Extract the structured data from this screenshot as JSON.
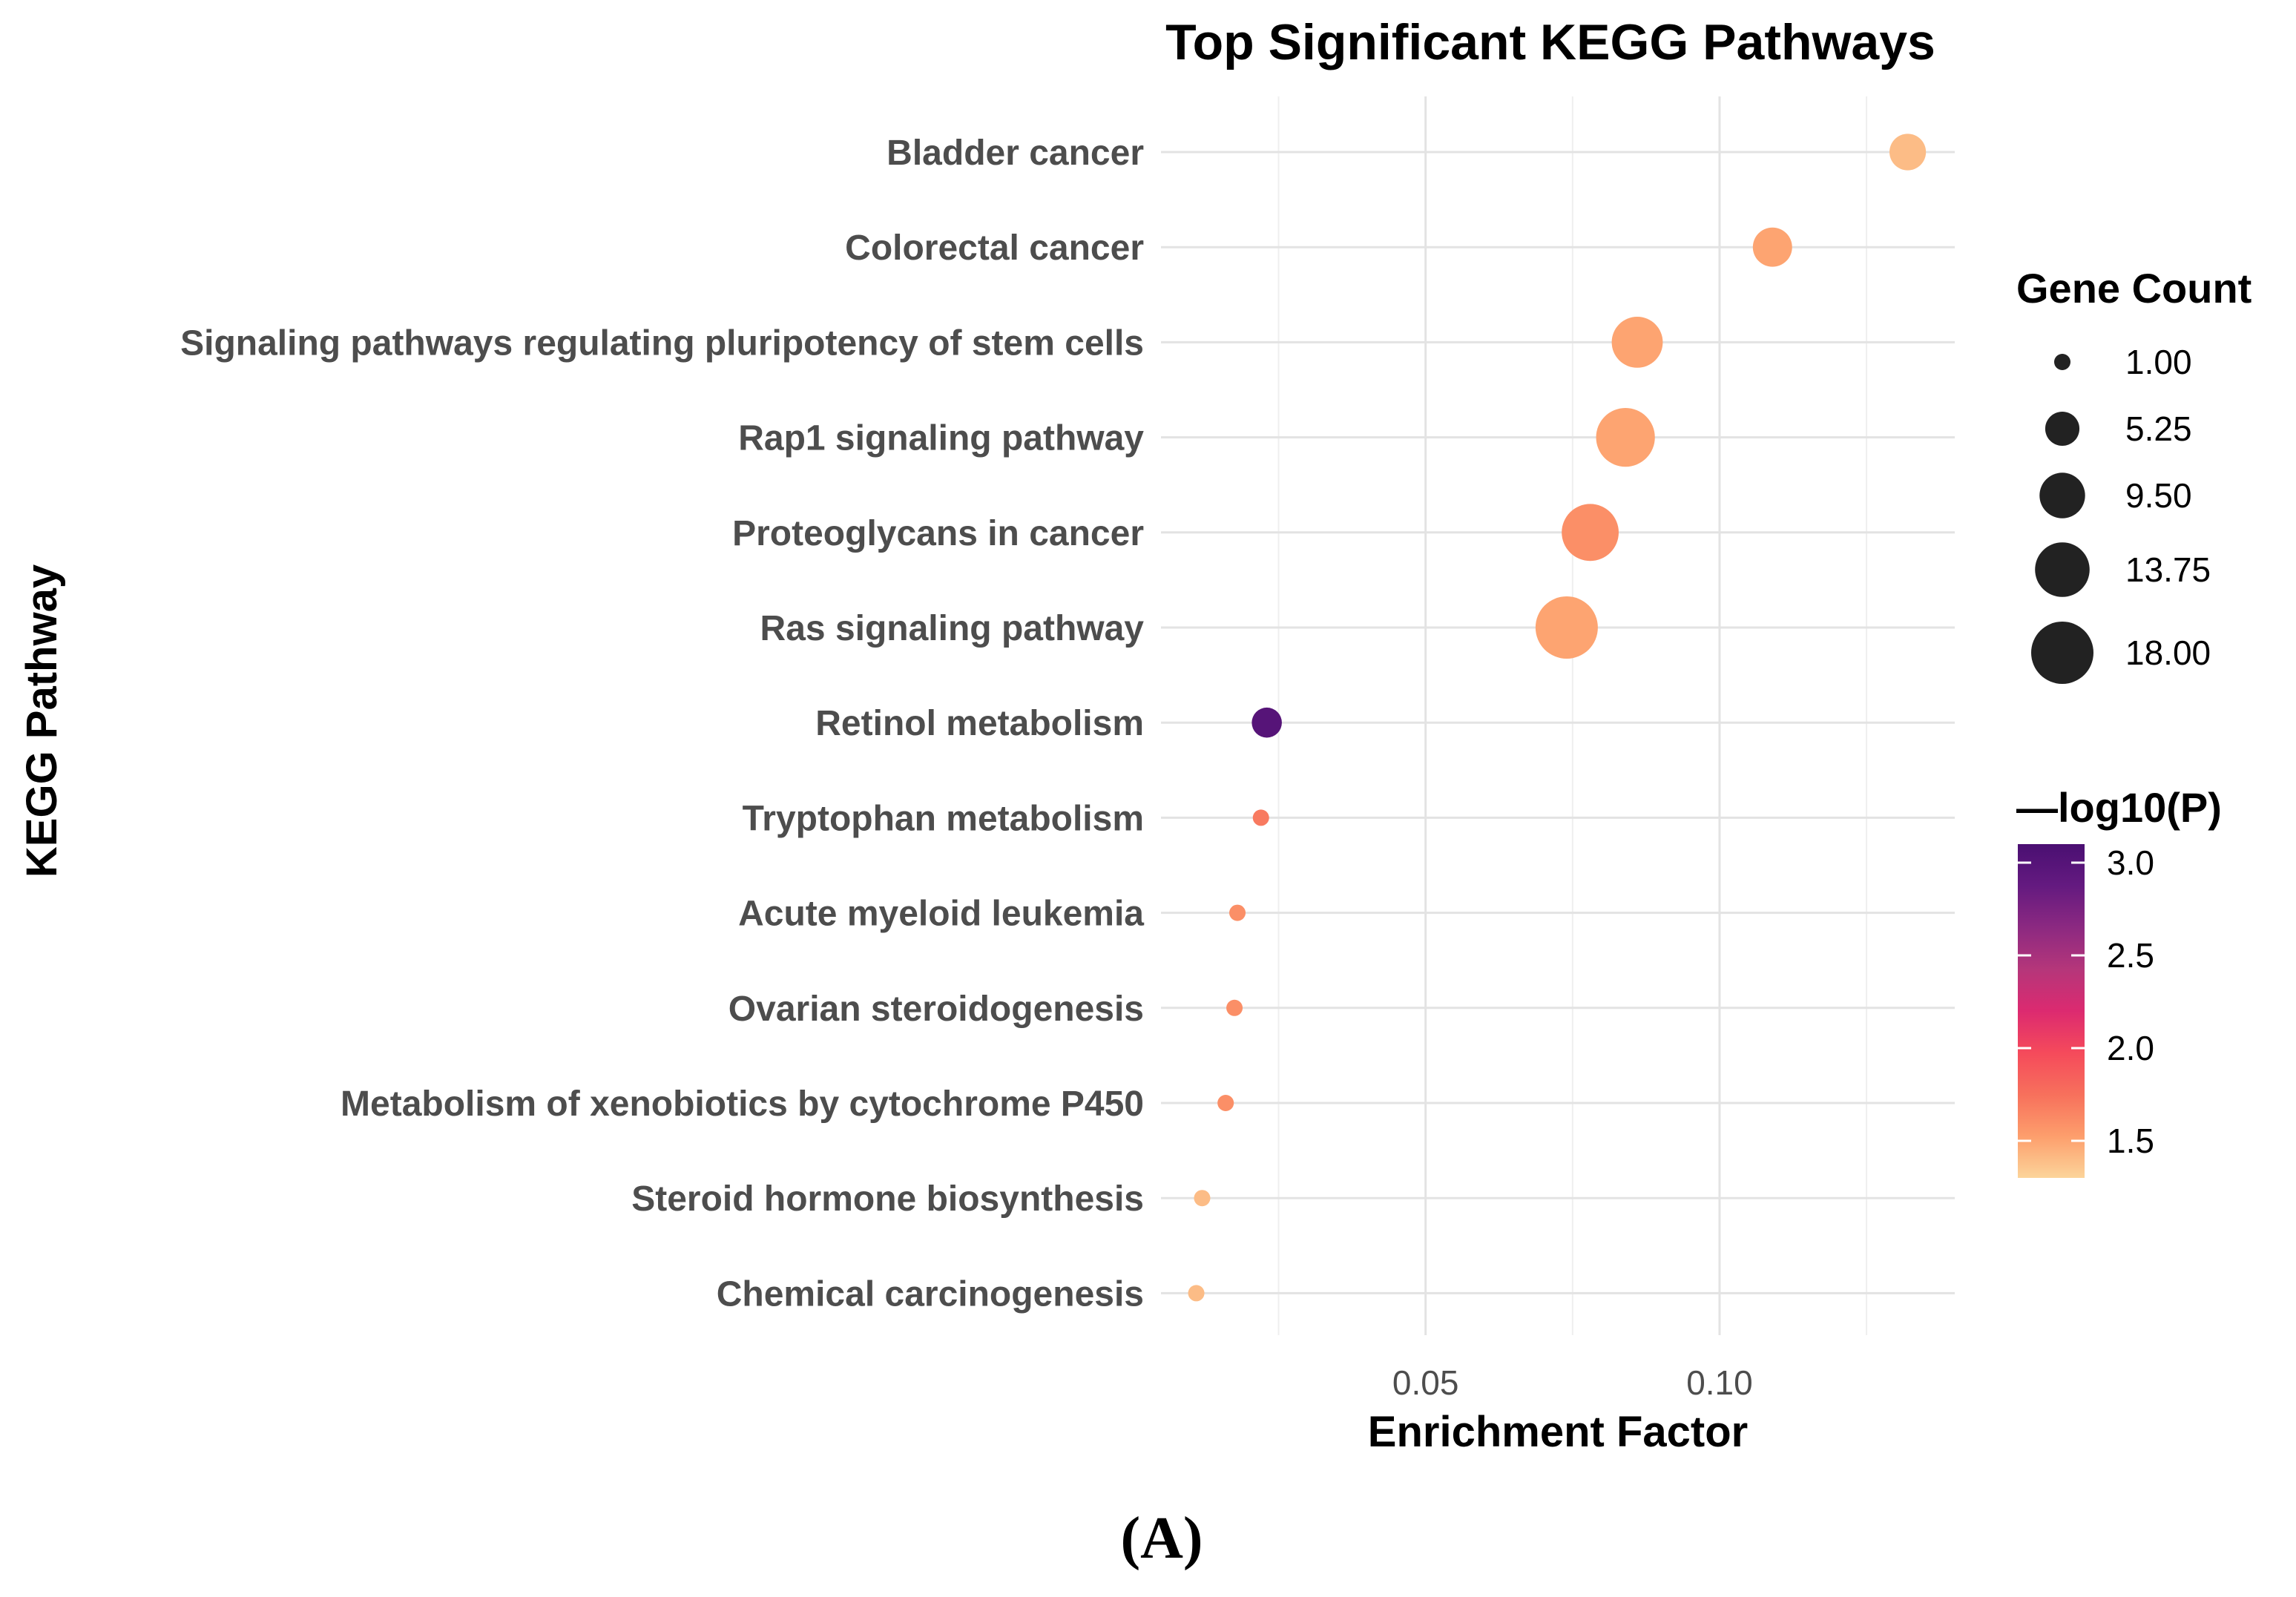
{
  "chart_data": {
    "type": "scatter",
    "title": "Top Significant KEGG Pathways",
    "xlabel": "Enrichment Factor",
    "ylabel": "KEGG Pathway",
    "xlim": [
      0.005,
      0.14
    ],
    "xticks": [
      0.05,
      0.1
    ],
    "xtick_labels": [
      "0.05",
      "0.10"
    ],
    "grid": true,
    "panel_label": "(A)",
    "points": [
      {
        "pathway": "Bladder cancer",
        "enrichment_factor": 0.132,
        "gene_count": 6,
        "neg_log10_p": 1.4
      },
      {
        "pathway": "Colorectal cancer",
        "enrichment_factor": 0.109,
        "gene_count": 7,
        "neg_log10_p": 1.5
      },
      {
        "pathway": "Signaling pathways regulating pluripotency of stem cells",
        "enrichment_factor": 0.086,
        "gene_count": 12,
        "neg_log10_p": 1.5
      },
      {
        "pathway": "Rap1 signaling pathway",
        "enrichment_factor": 0.084,
        "gene_count": 16,
        "neg_log10_p": 1.5
      },
      {
        "pathway": "Proteoglycans in cancer",
        "enrichment_factor": 0.078,
        "gene_count": 15,
        "neg_log10_p": 1.6
      },
      {
        "pathway": "Ras signaling pathway",
        "enrichment_factor": 0.074,
        "gene_count": 18,
        "neg_log10_p": 1.5
      },
      {
        "pathway": "Retinol metabolism",
        "enrichment_factor": 0.023,
        "gene_count": 4,
        "neg_log10_p": 3.0
      },
      {
        "pathway": "Tryptophan metabolism",
        "enrichment_factor": 0.022,
        "gene_count": 1,
        "neg_log10_p": 1.7
      },
      {
        "pathway": "Acute myeloid leukemia",
        "enrichment_factor": 0.018,
        "gene_count": 1,
        "neg_log10_p": 1.6
      },
      {
        "pathway": "Ovarian steroidogenesis",
        "enrichment_factor": 0.0175,
        "gene_count": 1,
        "neg_log10_p": 1.6
      },
      {
        "pathway": "Metabolism of xenobiotics by cytochrome P450",
        "enrichment_factor": 0.016,
        "gene_count": 1,
        "neg_log10_p": 1.6
      },
      {
        "pathway": "Steroid hormone biosynthesis",
        "enrichment_factor": 0.012,
        "gene_count": 1,
        "neg_log10_p": 1.4
      },
      {
        "pathway": "Chemical carcinogenesis",
        "enrichment_factor": 0.011,
        "gene_count": 1,
        "neg_log10_p": 1.4
      }
    ],
    "size_legend": {
      "title": "Gene Count",
      "range": [
        1,
        18
      ],
      "entries": [
        {
          "label": "1.00",
          "value": 1
        },
        {
          "label": "5.25",
          "value": 5.25
        },
        {
          "label": "9.50",
          "value": 9.5
        },
        {
          "label": "13.75",
          "value": 13.75
        },
        {
          "label": "18.00",
          "value": 18
        }
      ]
    },
    "color_legend": {
      "title": "—log10(P)",
      "range": [
        1.3,
        3.1
      ],
      "ticks": [
        {
          "label": "3.0",
          "value": 3.0
        },
        {
          "label": "2.5",
          "value": 2.5
        },
        {
          "label": "2.0",
          "value": 2.0
        },
        {
          "label": "1.5",
          "value": 1.5
        }
      ],
      "colormap": [
        "#fcd49a",
        "#fd9e6c",
        "#f7705c",
        "#f54a5b",
        "#dc2a70",
        "#b5367a",
        "#8c2981",
        "#641a80",
        "#4a0f72"
      ]
    }
  }
}
